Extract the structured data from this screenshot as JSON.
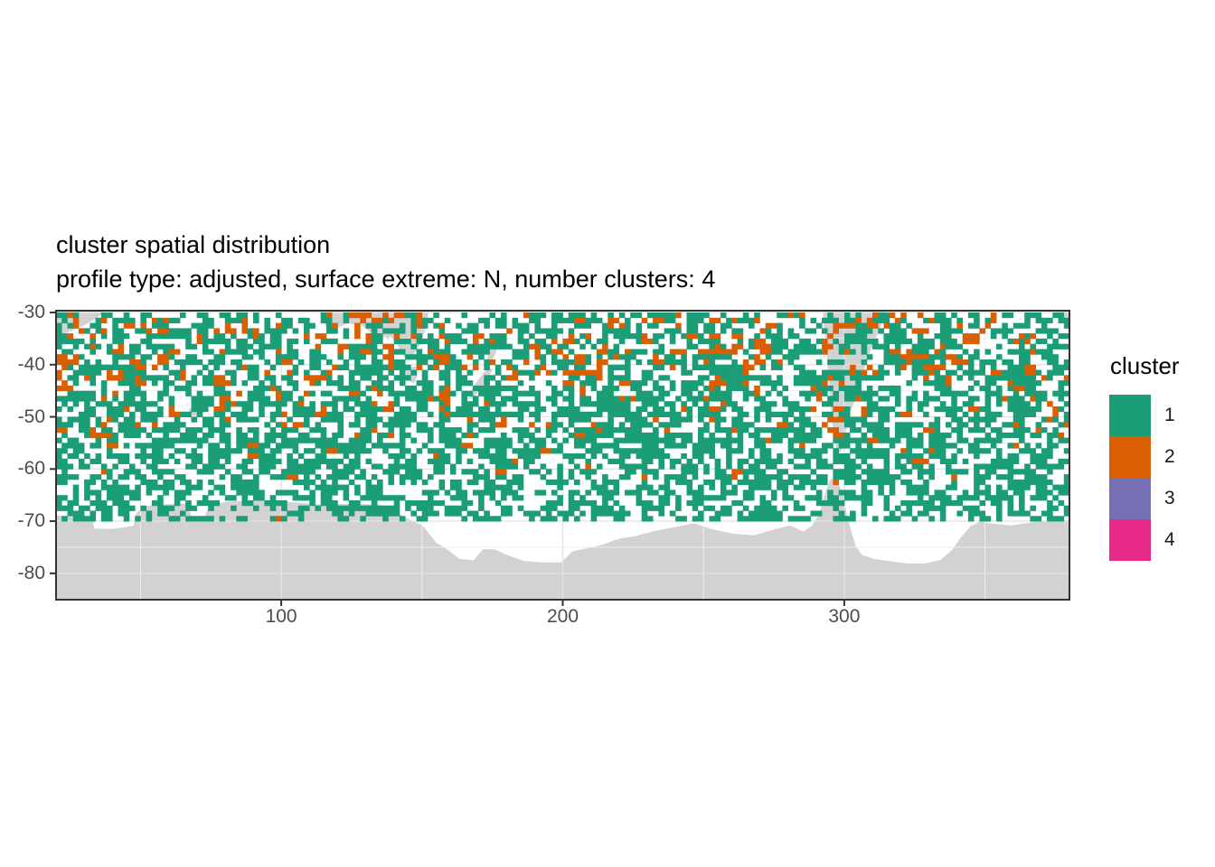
{
  "chart": {
    "title": "cluster spatial distribution",
    "subtitle": "profile type: adjusted, surface extreme: N, number clusters: 4"
  },
  "chart_data": {
    "type": "heatmap",
    "description": "Circumpolar Southern Ocean map of cluster assignments on a 2-degree longitude by 1-degree latitude tile grid; land masses shown in grey, ocean tiles coloured by cluster 1-4.",
    "x_axis": {
      "label": "",
      "range": [
        20,
        380
      ],
      "ticks": [
        100,
        200,
        300
      ],
      "tick_labels": [
        "100",
        "200",
        "300"
      ],
      "minor_ticks": [
        50,
        150,
        250,
        350
      ],
      "unit": "degrees longitude (0-360 convention)"
    },
    "y_axis": {
      "label": "",
      "range": [
        -29.65,
        -85.05
      ],
      "ticks": [
        -30,
        -40,
        -50,
        -60,
        -70,
        -80
      ],
      "tick_labels": [
        "-30",
        "-40",
        "-50",
        "-60",
        "-70",
        "-80"
      ],
      "minor_ticks": [
        -35,
        -45,
        -55,
        -65,
        -75
      ],
      "unit": "degrees latitude"
    },
    "legend": {
      "title": "cluster",
      "position": "right",
      "items": [
        {
          "label": "1",
          "color": "#1B9E77"
        },
        {
          "label": "2",
          "color": "#D95F02"
        },
        {
          "label": "3",
          "color": "#7570B3"
        },
        {
          "label": "4",
          "color": "#E7298A"
        }
      ]
    },
    "colors": {
      "land": "#d2d2d2",
      "panel_bg": "#ffffff",
      "grid_major": "#e3e3e3",
      "grid_minor": "#efefef",
      "panel_border": "#333333",
      "tick_mark": "#333333",
      "axis_text": "#4d4d4d",
      "title_text": "#000000"
    },
    "grid": {
      "lon_start": 20,
      "cols": 180,
      "cell_lon": 2,
      "lat_start": -30,
      "rows": 55,
      "cell_lat": 1
    },
    "tile_generation": {
      "seeds": {
        "cells": 11,
        "macro": 7,
        "macro2": 19,
        "color": 23,
        "color2": 31,
        "colorFine": 5
      },
      "density_by_lat": [
        [
          -29.7,
          0.012
        ],
        [
          -33,
          0.05
        ],
        [
          -36,
          0.15
        ],
        [
          -40,
          0.26
        ],
        [
          -44,
          0.32
        ],
        [
          -48,
          0.37
        ],
        [
          -52,
          0.37
        ],
        [
          -56,
          0.31
        ],
        [
          -58,
          0.26
        ],
        [
          -60,
          0.22
        ],
        [
          -62,
          0.16
        ],
        [
          -63.5,
          0.09
        ],
        [
          -66,
          0.045
        ],
        [
          -68.5,
          0.02
        ],
        [
          -70,
          0.0
        ],
        [
          -86,
          0.0
        ]
      ],
      "cluster_weights_by_lat": [
        {
          "lat_min": -44,
          "weights": [
            0.16,
            0.34,
            0.14,
            0.36
          ]
        },
        {
          "lat_min": -54,
          "weights": [
            0.2,
            0.3,
            0.14,
            0.36
          ]
        },
        {
          "lat_min": -62,
          "weights": [
            0.3,
            0.18,
            0.14,
            0.38
          ]
        },
        {
          "lat_min": -90,
          "weights": [
            0.42,
            0.12,
            0.16,
            0.3
          ]
        }
      ],
      "hotspots": [
        {
          "lon": [
            95,
            127
          ],
          "lat": [
            -30,
            -34.5
          ],
          "boost": 4.0
        },
        {
          "lon": [
            158,
            195
          ],
          "lat": [
            -30,
            -36
          ],
          "boost": 3.2
        },
        {
          "lon": [
            205,
            232
          ],
          "lat": [
            -31,
            -38
          ],
          "boost": 2.0
        },
        {
          "lon": [
            255,
            275
          ],
          "lat": [
            -30,
            -34
          ],
          "boost": 1.6
        },
        {
          "lon": [
            310,
            352
          ],
          "lat": [
            -30,
            -40
          ],
          "boost": 2.2
        },
        {
          "lon": [
            352,
            378
          ],
          "lat": [
            -30,
            -38
          ],
          "boost": 2.0
        },
        {
          "lon": [
            20,
            60
          ],
          "lat": [
            -36,
            -43
          ],
          "boost": 1.8
        },
        {
          "lon": [
            283,
            335
          ],
          "lat": [
            -55,
            -62
          ],
          "boost": 1.8
        },
        {
          "lon": [
            130,
            215
          ],
          "lat": [
            -57.5,
            -66
          ],
          "boost": 0.28
        },
        {
          "lon": [
            215,
            283
          ],
          "lat": [
            -58,
            -63
          ],
          "boost": 0.75
        },
        {
          "lon": [
            124,
            158
          ],
          "lat": [
            -30,
            -36
          ],
          "boost": 0.35
        },
        {
          "lon": [
            20,
            380
          ],
          "lat": [
            -44,
            -56
          ],
          "boost": 1.15
        }
      ]
    },
    "land_regions": [
      {
        "name": "africa-southern-tip",
        "points": [
          [
            19.6,
            -29.65
          ],
          [
            37.6,
            -29.65
          ],
          [
            34.7,
            -31.0
          ],
          [
            30.3,
            -32.4
          ],
          [
            25.8,
            -33.4
          ],
          [
            21.9,
            -34.3
          ],
          [
            19.6,
            -34.7
          ]
        ]
      },
      {
        "name": "africa-wrap-right-edge",
        "points": [
          [
            375.5,
            -29.65
          ],
          [
            380,
            -29.65
          ],
          [
            380,
            -33.8
          ],
          [
            377.9,
            -31.2
          ],
          [
            375.5,
            -30.0
          ]
        ]
      },
      {
        "name": "australia",
        "points": [
          [
            114,
            -29.65
          ],
          [
            152.4,
            -29.65
          ],
          [
            151.8,
            -31.7
          ],
          [
            150.8,
            -33.8
          ],
          [
            149.5,
            -35.9
          ],
          [
            148.3,
            -36.9
          ],
          [
            146.3,
            -38.8
          ],
          [
            145.4,
            -38.0
          ],
          [
            143.8,
            -38.7
          ],
          [
            141.2,
            -36.2
          ],
          [
            138.7,
            -34.5
          ],
          [
            138.0,
            -35.4
          ],
          [
            136.8,
            -34.5
          ],
          [
            135.5,
            -35.5
          ],
          [
            134.2,
            -34.2
          ],
          [
            132.9,
            -34.8
          ],
          [
            131.0,
            -33.5
          ],
          [
            128.4,
            -32.4
          ],
          [
            123.6,
            -32.1
          ],
          [
            120.4,
            -32.8
          ],
          [
            117.2,
            -33.8
          ],
          [
            114.0,
            -30.9
          ]
        ]
      },
      {
        "name": "tasmania",
        "points": [
          [
            144.4,
            -40.4
          ],
          [
            148.0,
            -40.4
          ],
          [
            148.4,
            -42.2
          ],
          [
            147.1,
            -43.6
          ],
          [
            144.9,
            -42.9
          ],
          [
            144.2,
            -41.2
          ]
        ]
      },
      {
        "name": "new-zealand-north-island",
        "points": [
          [
            176.1,
            -34.5
          ],
          [
            178.3,
            -34.5
          ],
          [
            177.0,
            -36.6
          ],
          [
            175.8,
            -38.3
          ],
          [
            174.2,
            -39.7
          ],
          [
            172.6,
            -39.3
          ],
          [
            174.2,
            -37.3
          ],
          [
            175.1,
            -35.5
          ]
        ]
      },
      {
        "name": "new-zealand-south-island",
        "points": [
          [
            175.4,
            -40.7
          ],
          [
            173.2,
            -42.8
          ],
          [
            170.6,
            -44.9
          ],
          [
            168.1,
            -46.3
          ],
          [
            166.5,
            -46.6
          ],
          [
            167.2,
            -45.2
          ],
          [
            170.0,
            -42.8
          ],
          [
            172.6,
            -41.1
          ]
        ]
      },
      {
        "name": "kerguelen",
        "points": [
          [
            67.2,
            -48.4
          ],
          [
            70.4,
            -48.4
          ],
          [
            70.4,
            -49.8
          ],
          [
            67.2,
            -49.8
          ]
        ]
      },
      {
        "name": "south-america",
        "points": [
          [
            292.4,
            -29.65
          ],
          [
            314.8,
            -29.65
          ],
          [
            313.2,
            -32.4
          ],
          [
            311.3,
            -34.8
          ],
          [
            309.1,
            -37.6
          ],
          [
            307.5,
            -40.0
          ],
          [
            306.2,
            -42.8
          ],
          [
            304.3,
            -46.2
          ],
          [
            302.4,
            -48.8
          ],
          [
            301.1,
            -51.4
          ],
          [
            300.1,
            -53.9
          ],
          [
            299.4,
            -56.1
          ],
          [
            298.4,
            -57.0
          ],
          [
            297.1,
            -55.9
          ],
          [
            296.1,
            -53.2
          ],
          [
            295.5,
            -49.7
          ],
          [
            294.9,
            -46.2
          ],
          [
            294.3,
            -41.9
          ],
          [
            293.7,
            -37.6
          ],
          [
            293.0,
            -33.3
          ]
        ]
      },
      {
        "name": "falkland-islands",
        "points": [
          [
            298.3,
            -50.2
          ],
          [
            302.8,
            -50.2
          ],
          [
            302.8,
            -51.8
          ],
          [
            298.3,
            -51.8
          ]
        ]
      },
      {
        "name": "south-georgia",
        "points": [
          [
            322.5,
            -53.7
          ],
          [
            325.0,
            -53.7
          ],
          [
            325.0,
            -54.8
          ],
          [
            322.5,
            -54.8
          ]
        ]
      },
      {
        "name": "antarctica",
        "points": [
          [
            20,
            -68.9
          ],
          [
            24,
            -69.1
          ],
          [
            29,
            -69.4
          ],
          [
            33,
            -69.6
          ],
          [
            33.6,
            -71.4
          ],
          [
            39,
            -71.5
          ],
          [
            44,
            -71.2
          ],
          [
            47.5,
            -70.9
          ],
          [
            48.5,
            -68.5
          ],
          [
            51.5,
            -67.1
          ],
          [
            58,
            -66.8
          ],
          [
            66.5,
            -66.6
          ],
          [
            68.3,
            -69.3
          ],
          [
            72.8,
            -69.1
          ],
          [
            74.5,
            -66.8
          ],
          [
            82,
            -66.2
          ],
          [
            92,
            -65.9
          ],
          [
            102.7,
            -66.3
          ],
          [
            113.9,
            -66.8
          ],
          [
            125,
            -66.7
          ],
          [
            134.8,
            -66.8
          ],
          [
            139.6,
            -67.8
          ],
          [
            144.4,
            -69.4
          ],
          [
            150.2,
            -70.8
          ],
          [
            155,
            -74.1
          ],
          [
            158.9,
            -75.4
          ],
          [
            163.3,
            -77.2
          ],
          [
            168.4,
            -77.5
          ],
          [
            171.6,
            -75.4
          ],
          [
            175.8,
            -75.4
          ],
          [
            180.3,
            -76.5
          ],
          [
            186.1,
            -77.6
          ],
          [
            192.4,
            -77.9
          ],
          [
            199.5,
            -77.9
          ],
          [
            203.4,
            -75.8
          ],
          [
            208.5,
            -75.2
          ],
          [
            214.3,
            -74.5
          ],
          [
            219.7,
            -73.4
          ],
          [
            226.2,
            -72.8
          ],
          [
            232.6,
            -71.9
          ],
          [
            240.4,
            -71.1
          ],
          [
            246.4,
            -70.4
          ],
          [
            253.4,
            -71.6
          ],
          [
            260.5,
            -72.4
          ],
          [
            267.9,
            -72.7
          ],
          [
            274.3,
            -71.7
          ],
          [
            280.7,
            -70.8
          ],
          [
            285.5,
            -72.0
          ],
          [
            288.7,
            -70.8
          ],
          [
            291.3,
            -68.2
          ],
          [
            293.2,
            -64.7
          ],
          [
            295.1,
            -61.8
          ],
          [
            297.7,
            -62.3
          ],
          [
            299.6,
            -65.1
          ],
          [
            300.9,
            -68.5
          ],
          [
            302.5,
            -72.0
          ],
          [
            304.1,
            -74.8
          ],
          [
            306.4,
            -76.5
          ],
          [
            310.5,
            -77.2
          ],
          [
            316.1,
            -77.7
          ],
          [
            322.4,
            -78.1
          ],
          [
            328.8,
            -78.1
          ],
          [
            334.3,
            -77.4
          ],
          [
            338.4,
            -75.5
          ],
          [
            341.6,
            -73.0
          ],
          [
            344.8,
            -71.0
          ],
          [
            348.1,
            -70.1
          ],
          [
            352.9,
            -70.5
          ],
          [
            359.3,
            -70.8
          ],
          [
            365.7,
            -70.3
          ],
          [
            372.1,
            -69.9
          ],
          [
            380,
            -69.8
          ],
          [
            380,
            -86
          ],
          [
            20,
            -86
          ]
        ]
      }
    ]
  }
}
